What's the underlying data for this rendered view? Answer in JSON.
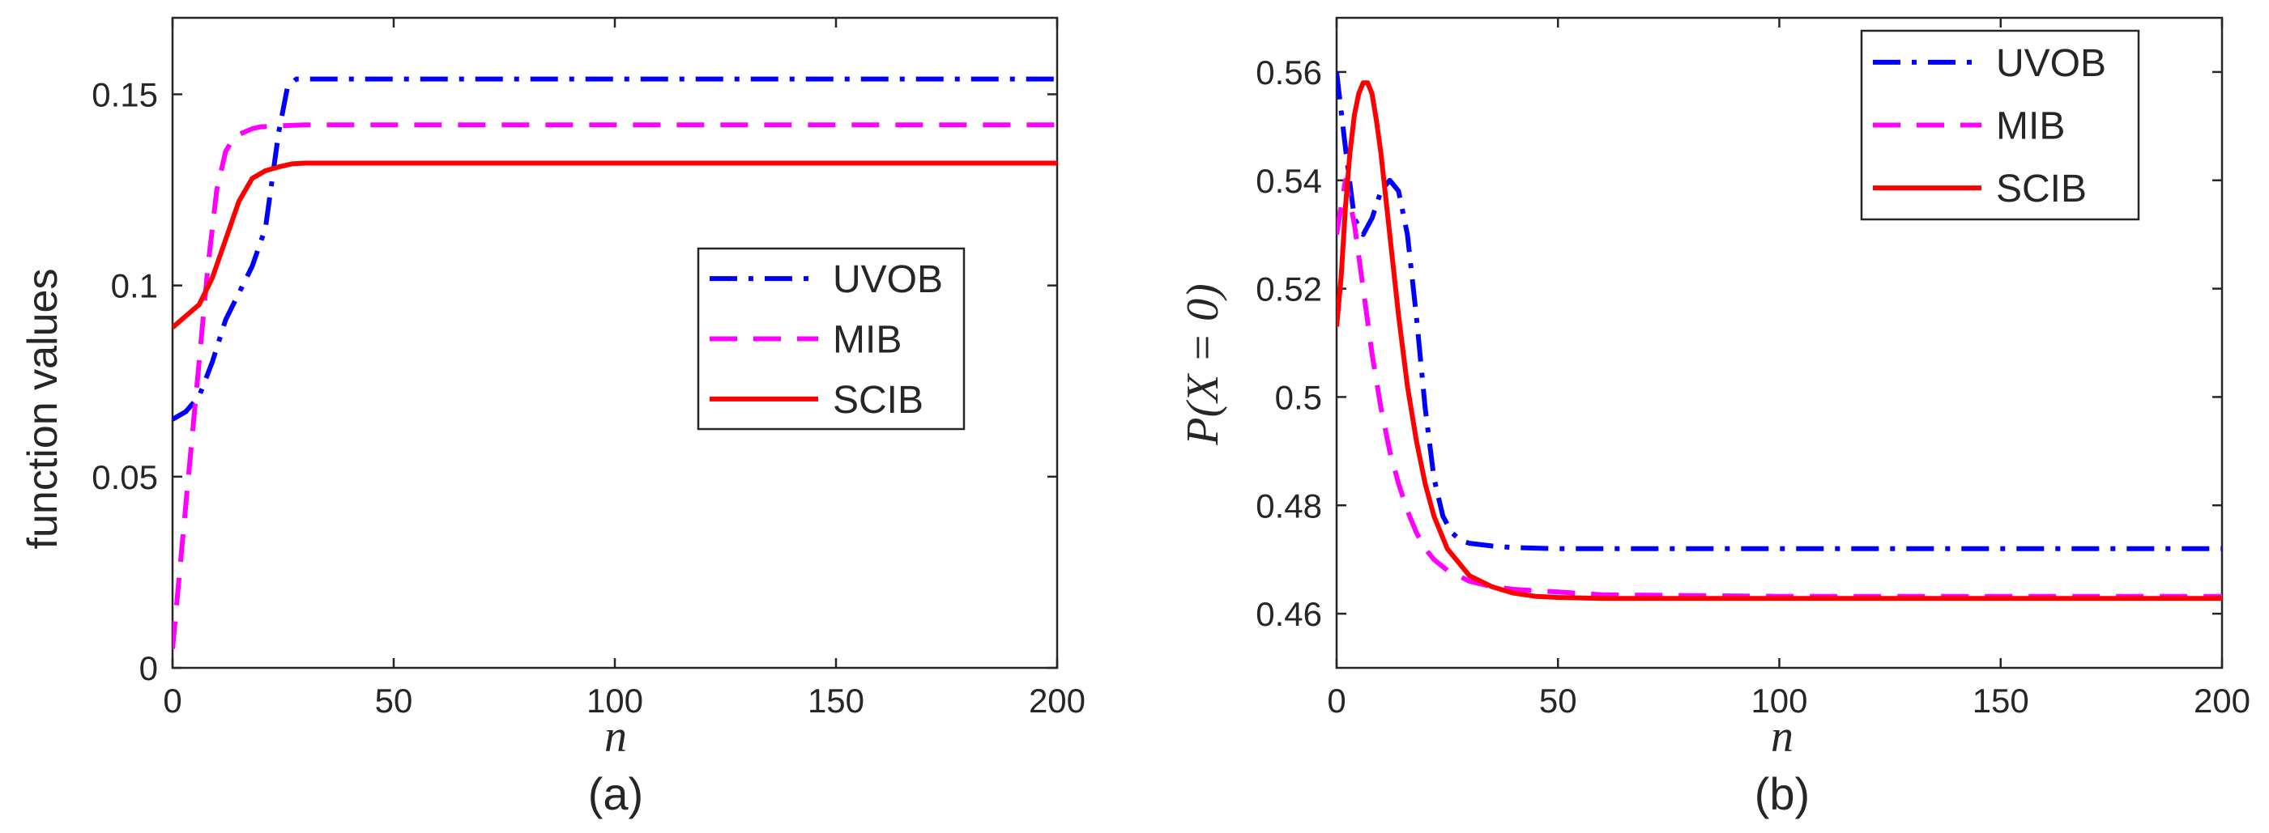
{
  "chart_data": [
    {
      "type": "line",
      "caption": "(a)",
      "xlabel": "n",
      "ylabel": "function values",
      "xlim": [
        0,
        200
      ],
      "ylim": [
        0,
        0.17
      ],
      "xticks": [
        0,
        50,
        100,
        150,
        200
      ],
      "xtick_labels": [
        "0",
        "50",
        "100",
        "150",
        "200"
      ],
      "yticks": [
        0,
        0.05,
        0.1,
        0.15
      ],
      "ytick_labels": [
        "0",
        "0.05",
        "0.1",
        "0.15"
      ],
      "grid": false,
      "legend_position": "center-right",
      "series": [
        {
          "name": "UVOB",
          "color": "#0000ff",
          "dash": "dashdot",
          "x": [
            0,
            3,
            6,
            9,
            12,
            15,
            18,
            21,
            24,
            26,
            28,
            30,
            40,
            50,
            100,
            150,
            200
          ],
          "y": [
            0.065,
            0.067,
            0.071,
            0.08,
            0.091,
            0.098,
            0.105,
            0.115,
            0.14,
            0.152,
            0.154,
            0.154,
            0.154,
            0.154,
            0.154,
            0.154,
            0.154
          ]
        },
        {
          "name": "MIB",
          "color": "#ff00ff",
          "dash": "dashed",
          "x": [
            0,
            2,
            4,
            6,
            8,
            10,
            12,
            14,
            16,
            18,
            20,
            25,
            30,
            50,
            100,
            150,
            200
          ],
          "y": [
            0.005,
            0.03,
            0.055,
            0.08,
            0.105,
            0.125,
            0.135,
            0.139,
            0.14,
            0.141,
            0.1415,
            0.1418,
            0.142,
            0.142,
            0.142,
            0.142,
            0.142
          ]
        },
        {
          "name": "SCIB",
          "color": "#ff0000",
          "dash": "solid",
          "x": [
            0,
            3,
            6,
            9,
            12,
            15,
            18,
            21,
            24,
            27,
            30,
            40,
            50,
            100,
            150,
            200
          ],
          "y": [
            0.089,
            0.092,
            0.095,
            0.102,
            0.112,
            0.122,
            0.128,
            0.13,
            0.131,
            0.1318,
            0.132,
            0.132,
            0.132,
            0.132,
            0.132,
            0.132
          ]
        }
      ]
    },
    {
      "type": "line",
      "caption": "(b)",
      "xlabel": "n",
      "ylabel": "P(X = 0)",
      "xlim": [
        0,
        200
      ],
      "ylim": [
        0.45,
        0.57
      ],
      "xticks": [
        0,
        50,
        100,
        150,
        200
      ],
      "xtick_labels": [
        "0",
        "50",
        "100",
        "150",
        "200"
      ],
      "yticks": [
        0.46,
        0.48,
        0.5,
        0.52,
        0.54,
        0.56
      ],
      "ytick_labels": [
        "0.46",
        "0.48",
        "0.5",
        "0.52",
        "0.54",
        "0.56"
      ],
      "grid": false,
      "legend_position": "top-right",
      "series": [
        {
          "name": "UVOB",
          "color": "#0000ff",
          "dash": "dashdot",
          "x": [
            0,
            2,
            4,
            6,
            8,
            10,
            12,
            14,
            16,
            18,
            20,
            22,
            24,
            26,
            28,
            30,
            35,
            40,
            50,
            100,
            150,
            200
          ],
          "y": [
            0.56,
            0.546,
            0.533,
            0.53,
            0.533,
            0.538,
            0.54,
            0.538,
            0.53,
            0.515,
            0.498,
            0.485,
            0.478,
            0.475,
            0.4735,
            0.473,
            0.4725,
            0.4722,
            0.472,
            0.472,
            0.472,
            0.472
          ]
        },
        {
          "name": "MIB",
          "color": "#ff00ff",
          "dash": "dashed",
          "x": [
            0,
            2,
            4,
            6,
            8,
            10,
            12,
            14,
            16,
            18,
            20,
            22,
            25,
            30,
            35,
            40,
            50,
            60,
            100,
            150,
            200
          ],
          "y": [
            0.53,
            0.54,
            0.532,
            0.52,
            0.508,
            0.498,
            0.49,
            0.484,
            0.479,
            0.475,
            0.472,
            0.47,
            0.468,
            0.466,
            0.465,
            0.4645,
            0.464,
            0.4635,
            0.4632,
            0.4632,
            0.4632
          ]
        },
        {
          "name": "SCIB",
          "color": "#ff0000",
          "dash": "solid",
          "x": [
            0,
            1,
            2,
            3,
            4,
            5,
            6,
            7,
            8,
            9,
            10,
            12,
            14,
            16,
            18,
            20,
            22,
            25,
            30,
            35,
            40,
            45,
            50,
            60,
            100,
            150,
            200
          ],
          "y": [
            0.513,
            0.522,
            0.535,
            0.545,
            0.552,
            0.556,
            0.558,
            0.558,
            0.556,
            0.551,
            0.545,
            0.53,
            0.515,
            0.502,
            0.492,
            0.484,
            0.478,
            0.472,
            0.467,
            0.465,
            0.4638,
            0.4632,
            0.463,
            0.4628,
            0.4628,
            0.4628,
            0.4628
          ]
        }
      ]
    }
  ]
}
